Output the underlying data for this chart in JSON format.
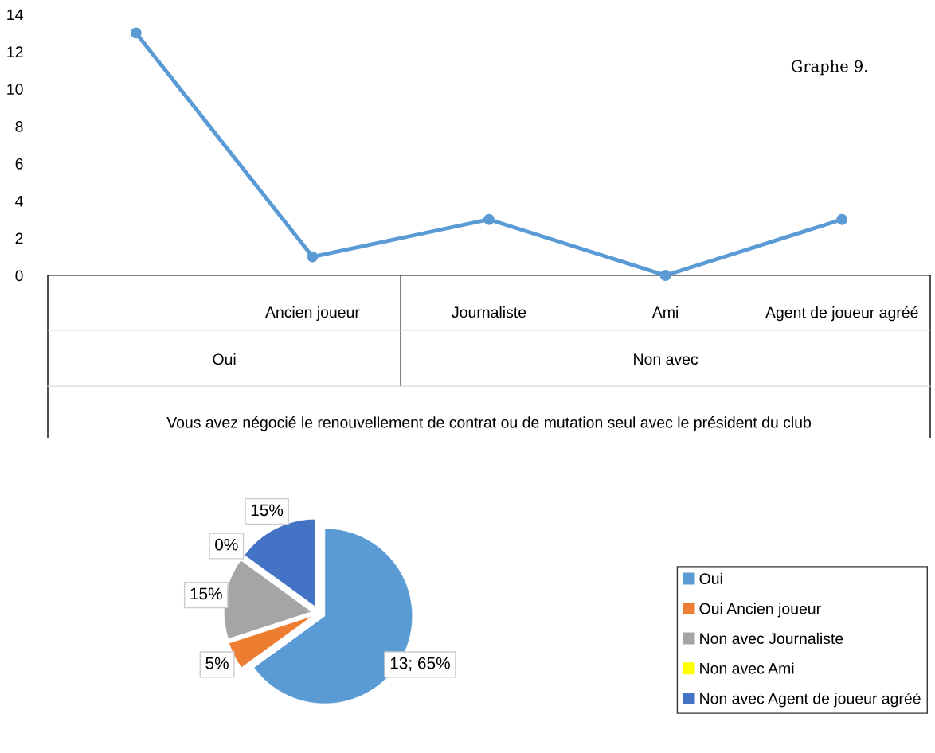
{
  "chart_data": [
    {
      "type": "line",
      "title": "Graphe 9.",
      "categories": [
        null,
        "Ancien joueur",
        "Journaliste",
        "Ami",
        "Agent de joueur agréé"
      ],
      "values": [
        13,
        1,
        3,
        0,
        3
      ],
      "color": "#5b9bd5",
      "marker": "circle",
      "ylim": [
        0,
        14
      ],
      "yticks": [
        0,
        2,
        4,
        6,
        8,
        10,
        12,
        14
      ],
      "grid": false,
      "xlabel": "Vous avez négocié le renouvellement de contrat ou de mutation seul avec le président du club",
      "annotations": [
        "Oui",
        "Non avec"
      ]
    },
    {
      "type": "pie",
      "categories": [
        "Oui",
        "Oui Ancien joueur",
        "Non avec Journaliste",
        "Non avec Ami",
        "Non avec Agent de joueur agréé"
      ],
      "values": [
        65,
        5,
        15,
        0,
        15
      ],
      "colors": [
        "#5b9bd5",
        "#ed7d31",
        "#a5a5a5",
        "#ffff00",
        "#4472c4"
      ],
      "value_labels": [
        "13; 65%",
        "5%",
        "15%",
        "0%",
        "15%"
      ],
      "legend": "right"
    }
  ]
}
